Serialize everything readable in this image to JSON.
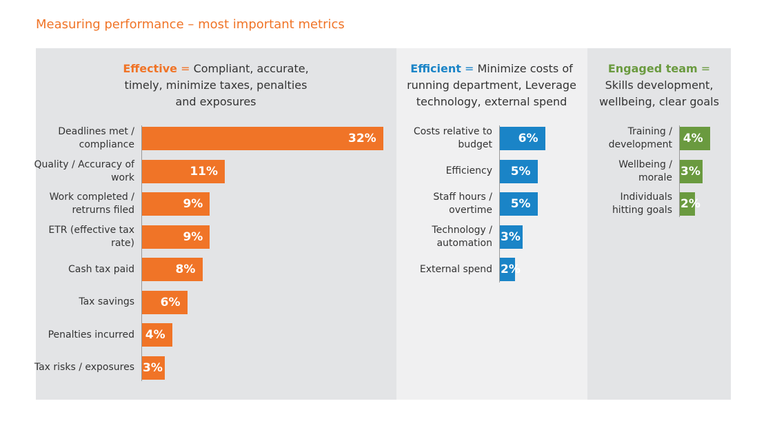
{
  "title": "Measuring performance – most important metrics",
  "chart_data": [
    {
      "type": "bar",
      "orientation": "horizontal",
      "name": "Effective",
      "separator": "=",
      "description": "Compliant, accurate, timely, minimize taxes, penalties and exposures",
      "color": "#f07427",
      "categories": [
        "Deadlines met / compliance",
        "Quality / Accuracy of work",
        "Work completed / retrurns filed",
        "ETR (effective tax rate)",
        "Cash tax paid",
        "Tax savings",
        "Penalties incurred",
        "Tax risks / exposures"
      ],
      "values": [
        32,
        11,
        9,
        9,
        8,
        6,
        4,
        3
      ],
      "value_labels": [
        "32%",
        "11%",
        "9%",
        "9%",
        "8%",
        "6%",
        "4%",
        "3%"
      ],
      "xlim": [
        0,
        32
      ]
    },
    {
      "type": "bar",
      "orientation": "horizontal",
      "name": "Efficient",
      "separator": "=",
      "description": "Minimize costs of running department, Leverage technology, external spend",
      "color": "#1a84c7",
      "categories": [
        "Costs relative to budget",
        "Efficiency",
        "Staff hours / overtime",
        "Technology / automation",
        "External spend"
      ],
      "values": [
        6,
        5,
        5,
        3,
        2
      ],
      "value_labels": [
        "6%",
        "5%",
        "5%",
        "3%",
        "2%"
      ],
      "xlim": [
        0,
        32
      ]
    },
    {
      "type": "bar",
      "orientation": "horizontal",
      "name": "Engaged team",
      "separator": "=",
      "description": "Skills development, wellbeing, clear goals",
      "color": "#6a9a3f",
      "categories": [
        "Training / development",
        "Wellbeing / morale",
        "Individuals hitting goals"
      ],
      "values": [
        4,
        3,
        2
      ],
      "value_labels": [
        "4%",
        "3%",
        "2%"
      ],
      "xlim": [
        0,
        32
      ]
    }
  ]
}
